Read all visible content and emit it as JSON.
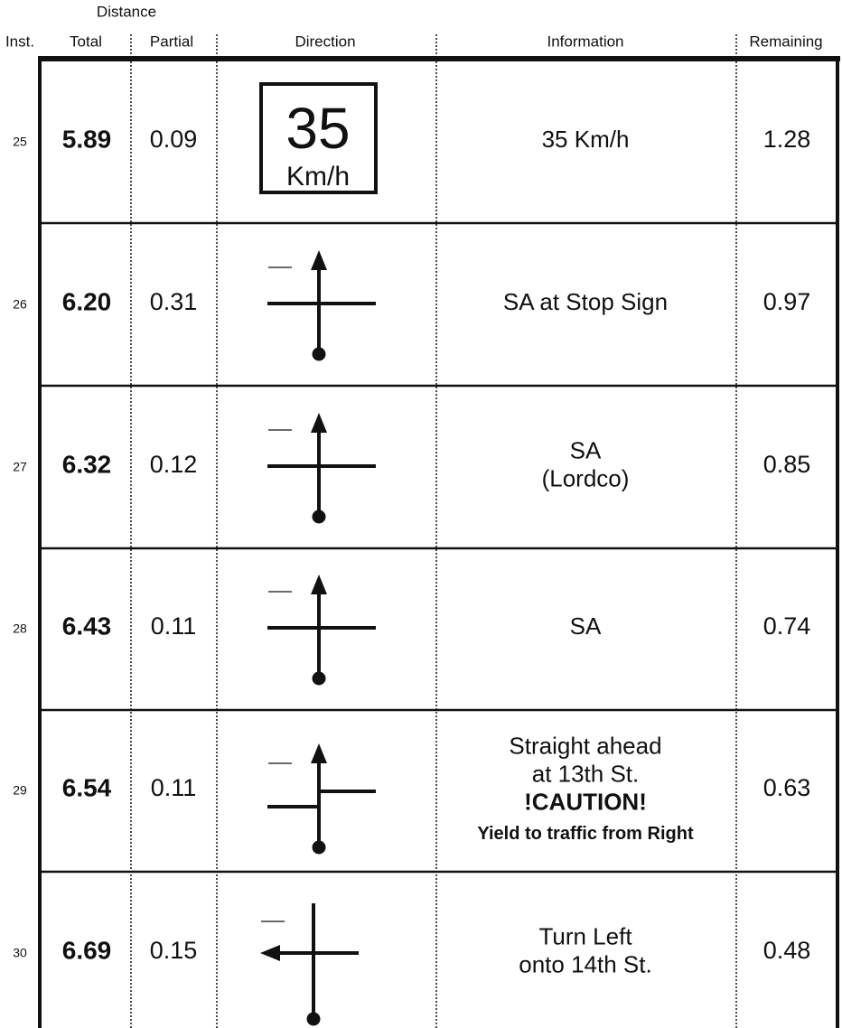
{
  "header": {
    "group": "Distance",
    "columns": [
      "Inst.",
      "Total",
      "Partial",
      "Direction",
      "Information",
      "Remaining"
    ]
  },
  "rows": [
    {
      "inst": "25",
      "total": "5.89",
      "partial": "0.09",
      "direction": "sign",
      "sign": [
        "35",
        "Km/h"
      ],
      "info": [
        {
          "text": "35 Km/h"
        }
      ],
      "remaining": "1.28"
    },
    {
      "inst": "26",
      "total": "6.20",
      "partial": "0.31",
      "direction": "straight",
      "info": [
        {
          "text": "SA at Stop Sign"
        }
      ],
      "remaining": "0.97"
    },
    {
      "inst": "27",
      "total": "6.32",
      "partial": "0.12",
      "direction": "straight",
      "info": [
        {
          "text": "SA"
        },
        {
          "text": "(Lordco)"
        }
      ],
      "remaining": "0.85"
    },
    {
      "inst": "28",
      "total": "6.43",
      "partial": "0.11",
      "direction": "straight",
      "info": [
        {
          "text": "SA"
        }
      ],
      "remaining": "0.74"
    },
    {
      "inst": "29",
      "total": "6.54",
      "partial": "0.11",
      "direction": "offset",
      "info": [
        {
          "text": "Straight ahead"
        },
        {
          "text": "at 13th St."
        },
        {
          "text": "!CAUTION!",
          "weight": "bold"
        },
        {
          "text": "Yield to traffic from Right",
          "weight": "bold",
          "size": "small"
        }
      ],
      "remaining": "0.63"
    },
    {
      "inst": "30",
      "total": "6.69",
      "partial": "0.15",
      "direction": "left",
      "info": [
        {
          "text": "Turn Left"
        },
        {
          "text": "onto 14th St."
        }
      ],
      "remaining": "0.48"
    }
  ]
}
